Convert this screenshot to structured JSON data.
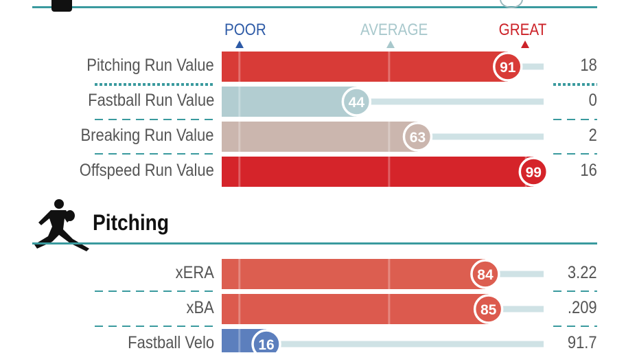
{
  "scale": {
    "poor_label": "POOR",
    "average_label": "AVERAGE",
    "great_label": "GREAT",
    "colors": {
      "poor": "#2d5aa6",
      "average": "#a8c8cc",
      "great": "#cc2228"
    }
  },
  "sections": [
    {
      "title": ""
    },
    {
      "title": "Pitching"
    }
  ],
  "chart_data": {
    "type": "bar",
    "xlim": [
      0,
      100
    ],
    "rows": [
      {
        "label": "Pitching Run Value",
        "percentile": 91,
        "value": "18",
        "color": "#d83b37",
        "section": 0
      },
      {
        "label": "Fastball Run Value",
        "percentile": 44,
        "value": "0",
        "color": "#b2cdd1",
        "section": 0
      },
      {
        "label": "Breaking Run Value",
        "percentile": 63,
        "value": "2",
        "color": "#cbb6ae",
        "section": 0
      },
      {
        "label": "Offspeed Run Value",
        "percentile": 99,
        "value": "16",
        "color": "#d5242a",
        "section": 0
      },
      {
        "label": "xERA",
        "percentile": 84,
        "value": "3.22",
        "color": "#dc5e50",
        "section": 1
      },
      {
        "label": "xBA",
        "percentile": 85,
        "value": ".209",
        "color": "#dc5a4e",
        "section": 1
      },
      {
        "label": "Fastball Velo",
        "percentile": 16,
        "value": "91.7",
        "color": "#5c7fbd",
        "section": 1
      }
    ]
  }
}
